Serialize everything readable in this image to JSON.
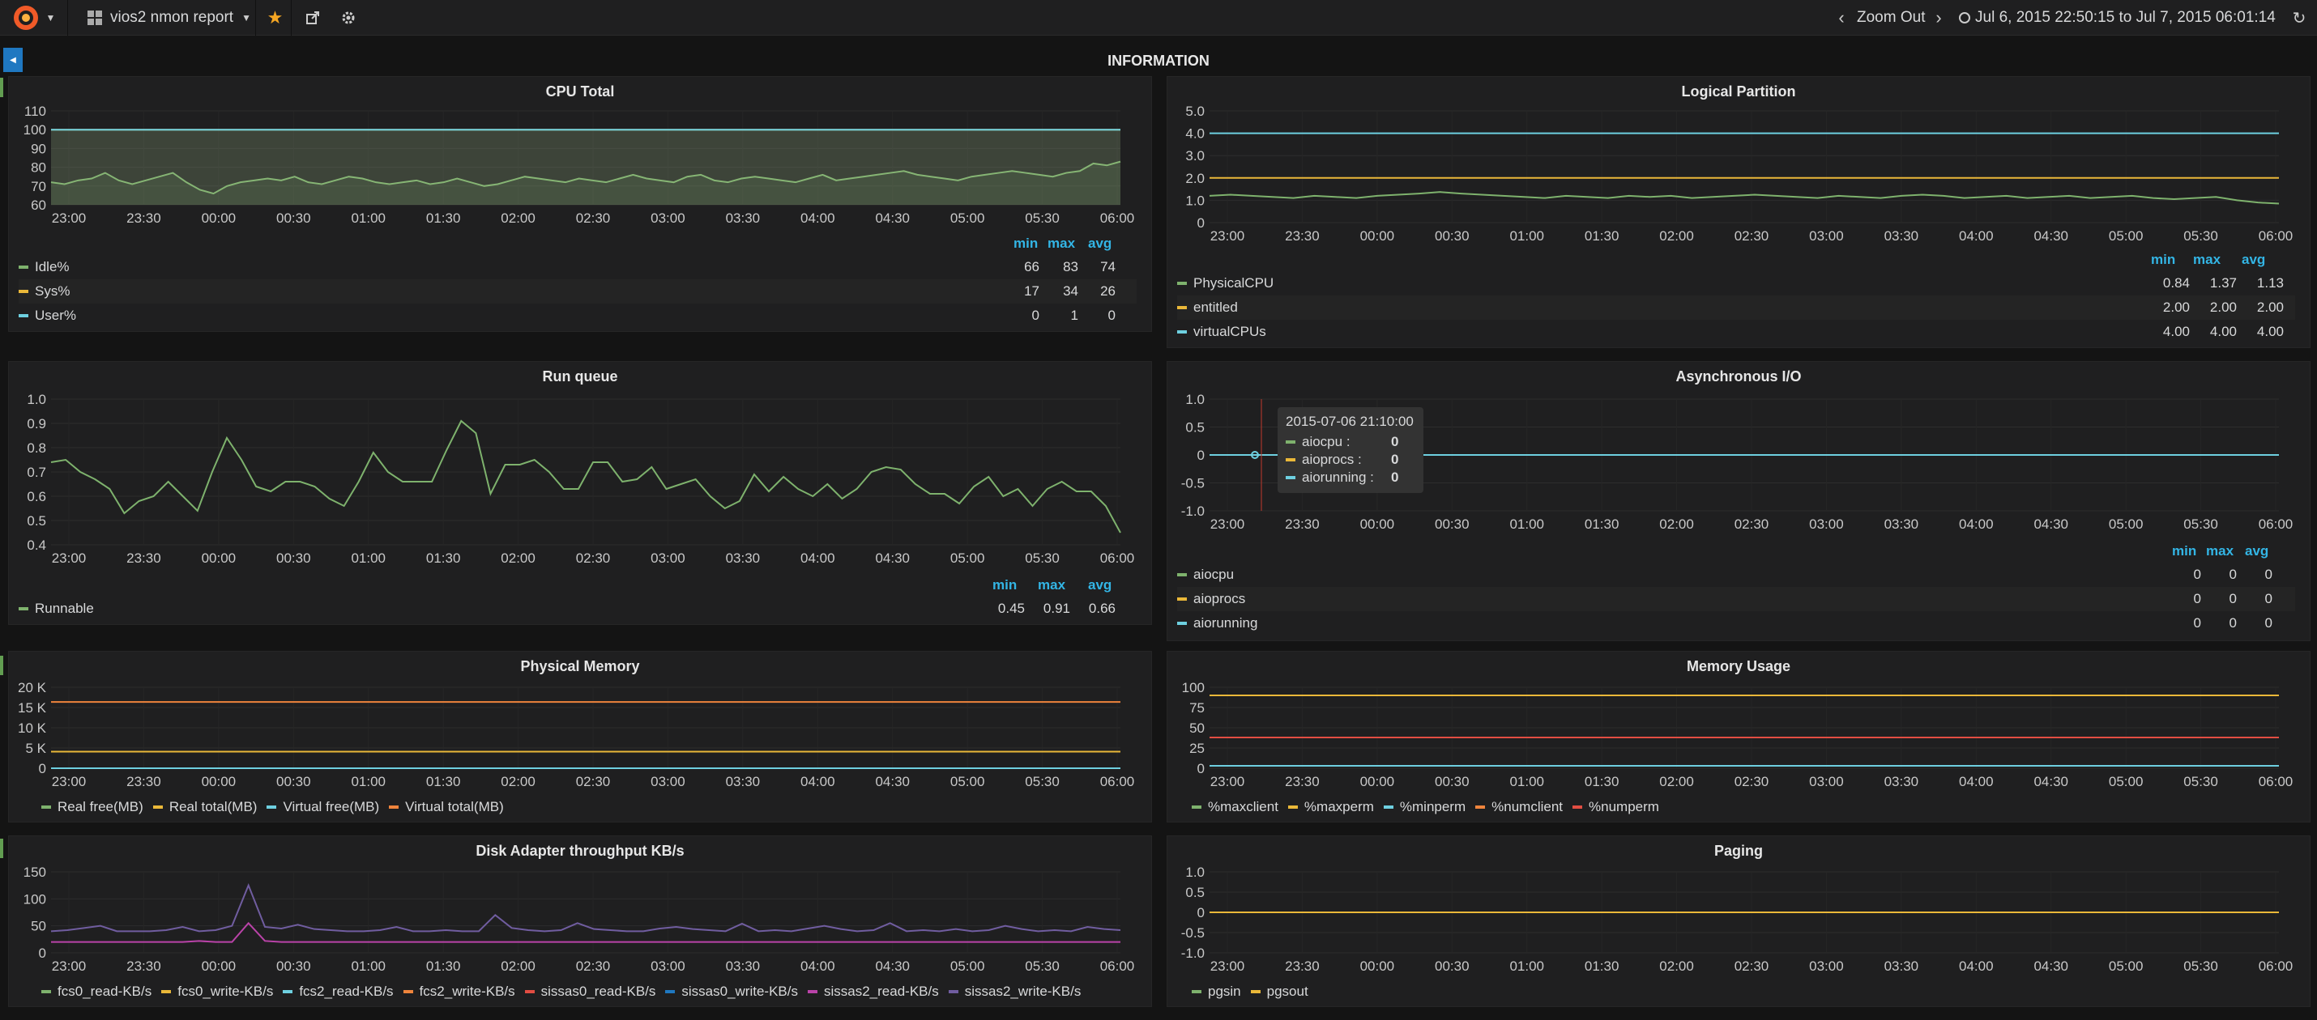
{
  "nav": {
    "dashboard_title": "vios2 nmon report",
    "zoom_out_label": "Zoom Out",
    "time_range": "Jul 6, 2015 22:50:15 to Jul 7, 2015 06:01:14"
  },
  "row_title": "INFORMATION",
  "time_ticks": [
    "23:00",
    "23:30",
    "00:00",
    "00:30",
    "01:00",
    "01:30",
    "02:00",
    "02:30",
    "03:00",
    "03:30",
    "04:00",
    "04:30",
    "05:00",
    "05:30",
    "06:00"
  ],
  "legend_headers": {
    "min": "min",
    "max": "max",
    "avg": "avg"
  },
  "panels": {
    "cpu": {
      "title": "CPU Total",
      "y_ticks": [
        "110",
        "100",
        "90",
        "80",
        "70",
        "60"
      ],
      "legend": [
        {
          "name": "Idle%",
          "min": "66",
          "max": "83",
          "avg": "74",
          "color": "#7eb26d"
        },
        {
          "name": "Sys%",
          "min": "17",
          "max": "34",
          "avg": "26",
          "color": "#eab839"
        },
        {
          "name": "User%",
          "min": "0",
          "max": "1",
          "avg": "0",
          "color": "#6ed0e0"
        }
      ]
    },
    "lpar": {
      "title": "Logical Partition",
      "y_ticks": [
        "5.0",
        "4.0",
        "3.0",
        "2.0",
        "1.0",
        "0"
      ],
      "legend": [
        {
          "name": "PhysicalCPU",
          "min": "0.84",
          "max": "1.37",
          "avg": "1.13",
          "color": "#7eb26d"
        },
        {
          "name": "entitled",
          "min": "2.00",
          "max": "2.00",
          "avg": "2.00",
          "color": "#eab839"
        },
        {
          "name": "virtualCPUs",
          "min": "4.00",
          "max": "4.00",
          "avg": "4.00",
          "color": "#6ed0e0"
        }
      ]
    },
    "runq": {
      "title": "Run queue",
      "y_ticks": [
        "1.0",
        "0.9",
        "0.8",
        "0.7",
        "0.6",
        "0.5",
        "0.4"
      ],
      "legend": [
        {
          "name": "Runnable",
          "min": "0.45",
          "max": "0.91",
          "avg": "0.66",
          "color": "#7eb26d"
        }
      ]
    },
    "aio": {
      "title": "Asynchronous I/O",
      "y_ticks": [
        "1.0",
        "0.5",
        "0",
        "-0.5",
        "-1.0"
      ],
      "legend": [
        {
          "name": "aiocpu",
          "min": "0",
          "max": "0",
          "avg": "0",
          "color": "#7eb26d"
        },
        {
          "name": "aioprocs",
          "min": "0",
          "max": "0",
          "avg": "0",
          "color": "#eab839"
        },
        {
          "name": "aiorunning",
          "min": "0",
          "max": "0",
          "avg": "0",
          "color": "#6ed0e0"
        }
      ],
      "tooltip": {
        "time": "2015-07-06 21:10:00",
        "rows": [
          {
            "name": "aiocpu :",
            "value": "0",
            "color": "#7eb26d"
          },
          {
            "name": "aioprocs :",
            "value": "0",
            "color": "#eab839"
          },
          {
            "name": "aiorunning :",
            "value": "0",
            "color": "#6ed0e0"
          }
        ]
      }
    },
    "physmem": {
      "title": "Physical Memory",
      "y_ticks": [
        "20 K",
        "15 K",
        "10 K",
        "5 K",
        "0"
      ],
      "legend": [
        {
          "name": "Real free(MB)",
          "color": "#7eb26d"
        },
        {
          "name": "Real total(MB)",
          "color": "#eab839"
        },
        {
          "name": "Virtual free(MB)",
          "color": "#6ed0e0"
        },
        {
          "name": "Virtual total(MB)",
          "color": "#ef843c"
        }
      ]
    },
    "memuse": {
      "title": "Memory Usage",
      "y_ticks": [
        "100",
        "75",
        "50",
        "25",
        "0"
      ],
      "legend": [
        {
          "name": "%maxclient",
          "color": "#7eb26d"
        },
        {
          "name": "%maxperm",
          "color": "#eab839"
        },
        {
          "name": "%minperm",
          "color": "#6ed0e0"
        },
        {
          "name": "%numclient",
          "color": "#ef843c"
        },
        {
          "name": "%numperm",
          "color": "#e24d42"
        }
      ]
    },
    "disk": {
      "title": "Disk Adapter throughput KB/s",
      "y_ticks": [
        "150",
        "100",
        "50",
        "0"
      ],
      "legend": [
        {
          "name": "fcs0_read-KB/s",
          "color": "#7eb26d"
        },
        {
          "name": "fcs0_write-KB/s",
          "color": "#eab839"
        },
        {
          "name": "fcs2_read-KB/s",
          "color": "#6ed0e0"
        },
        {
          "name": "fcs2_write-KB/s",
          "color": "#ef843c"
        },
        {
          "name": "sissas0_read-KB/s",
          "color": "#e24d42"
        },
        {
          "name": "sissas0_write-KB/s",
          "color": "#1f78c1"
        },
        {
          "name": "sissas2_read-KB/s",
          "color": "#ba43a9"
        },
        {
          "name": "sissas2_write-KB/s",
          "color": "#705da0"
        }
      ]
    },
    "paging": {
      "title": "Paging",
      "y_ticks": [
        "1.0",
        "0.5",
        "0",
        "-0.5",
        "-1.0"
      ],
      "legend": [
        {
          "name": "pgsin",
          "color": "#7eb26d"
        },
        {
          "name": "pgsout",
          "color": "#eab839"
        }
      ]
    }
  },
  "chart_data": [
    {
      "id": "cpu",
      "type": "line",
      "title": "CPU Total",
      "ylim": [
        60,
        110
      ],
      "series": [
        {
          "name": "Idle%",
          "values": [
            72,
            71,
            73,
            74,
            77,
            73,
            71,
            73,
            75,
            77,
            72,
            68,
            66,
            70,
            72,
            73,
            74,
            73,
            75,
            72,
            71,
            73,
            75,
            74,
            72,
            71,
            72,
            73,
            71,
            72,
            74,
            72,
            70,
            71,
            73,
            75,
            74,
            73,
            72,
            74,
            73,
            72,
            74,
            76,
            74,
            73,
            72,
            75,
            76,
            73,
            72,
            74,
            75,
            74,
            73,
            72,
            74,
            76,
            73,
            74,
            75,
            76,
            77,
            78,
            76,
            75,
            74,
            73,
            75,
            76,
            77,
            78,
            77,
            76,
            75,
            77,
            78,
            82,
            81,
            83
          ]
        },
        {
          "name": "Sys%",
          "values": [
            100,
            100,
            100,
            100,
            100,
            100,
            100,
            100,
            100,
            100,
            100,
            100,
            100,
            100,
            100,
            100,
            100,
            100,
            100,
            100
          ]
        },
        {
          "name": "User%",
          "values": [
            100,
            100,
            100,
            100,
            100,
            100,
            100,
            100,
            100,
            100,
            100,
            100,
            100,
            100,
            100,
            100,
            100,
            100,
            100,
            100
          ]
        }
      ]
    },
    {
      "id": "lpar",
      "type": "line",
      "title": "Logical Partition",
      "ylim": [
        0,
        5
      ],
      "series": [
        {
          "name": "PhysicalCPU",
          "values": [
            1.2,
            1.25,
            1.2,
            1.15,
            1.1,
            1.2,
            1.15,
            1.1,
            1.2,
            1.25,
            1.3,
            1.37,
            1.3,
            1.25,
            1.2,
            1.15,
            1.1,
            1.2,
            1.15,
            1.1,
            1.2,
            1.15,
            1.2,
            1.1,
            1.15,
            1.2,
            1.25,
            1.2,
            1.15,
            1.1,
            1.2,
            1.15,
            1.1,
            1.2,
            1.25,
            1.2,
            1.1,
            1.15,
            1.2,
            1.1,
            1.15,
            1.2,
            1.1,
            1.15,
            1.2,
            1.1,
            1.05,
            1.1,
            1.15,
            1.0,
            0.9,
            0.85
          ]
        },
        {
          "name": "entitled",
          "values": [
            2,
            2,
            2,
            2,
            2,
            2,
            2,
            2,
            2,
            2
          ]
        },
        {
          "name": "virtualCPUs",
          "values": [
            4,
            4,
            4,
            4,
            4,
            4,
            4,
            4,
            4,
            4
          ]
        }
      ]
    },
    {
      "id": "runq",
      "type": "line",
      "title": "Run queue",
      "ylim": [
        0.4,
        1.0
      ],
      "series": [
        {
          "name": "Runnable",
          "values": [
            0.74,
            0.75,
            0.7,
            0.67,
            0.63,
            0.53,
            0.58,
            0.6,
            0.66,
            0.6,
            0.54,
            0.7,
            0.84,
            0.75,
            0.64,
            0.62,
            0.66,
            0.66,
            0.64,
            0.59,
            0.56,
            0.66,
            0.78,
            0.7,
            0.66,
            0.66,
            0.66,
            0.79,
            0.91,
            0.86,
            0.61,
            0.73,
            0.73,
            0.75,
            0.7,
            0.63,
            0.63,
            0.74,
            0.74,
            0.66,
            0.67,
            0.72,
            0.63,
            0.65,
            0.67,
            0.6,
            0.55,
            0.58,
            0.69,
            0.62,
            0.68,
            0.63,
            0.6,
            0.65,
            0.59,
            0.63,
            0.7,
            0.72,
            0.71,
            0.65,
            0.61,
            0.61,
            0.57,
            0.64,
            0.68,
            0.6,
            0.63,
            0.56,
            0.63,
            0.66,
            0.62,
            0.62,
            0.56,
            0.45
          ]
        }
      ]
    },
    {
      "id": "aio",
      "type": "line",
      "title": "Asynchronous I/O",
      "ylim": [
        -1.0,
        1.0
      ],
      "series": [
        {
          "name": "aiocpu",
          "values": [
            0,
            0,
            0,
            0,
            0,
            0,
            0,
            0,
            0,
            0
          ]
        },
        {
          "name": "aioprocs",
          "values": [
            0,
            0,
            0,
            0,
            0,
            0,
            0,
            0,
            0,
            0
          ]
        },
        {
          "name": "aiorunning",
          "values": [
            0,
            0,
            0,
            0,
            0,
            0,
            0,
            0,
            0,
            0
          ]
        }
      ]
    },
    {
      "id": "physmem",
      "type": "line",
      "title": "Physical Memory",
      "ylim": [
        0,
        20000
      ],
      "series": [
        {
          "name": "Real free(MB)",
          "values": [
            0,
            0,
            0,
            0,
            0,
            0,
            0,
            0,
            0,
            0
          ]
        },
        {
          "name": "Real total(MB)",
          "values": [
            4096,
            4096,
            4096,
            4096,
            4096,
            4096,
            4096,
            4096,
            4096,
            4096
          ]
        },
        {
          "name": "Virtual free(MB)",
          "values": [
            0,
            0,
            0,
            0,
            0,
            0,
            0,
            0,
            0,
            0
          ]
        },
        {
          "name": "Virtual total(MB)",
          "values": [
            16384,
            16384,
            16384,
            16384,
            16384,
            16384,
            16384,
            16384,
            16384,
            16384
          ]
        }
      ]
    },
    {
      "id": "memuse",
      "type": "line",
      "title": "Memory Usage",
      "ylim": [
        0,
        100
      ],
      "series": [
        {
          "name": "%maxclient",
          "values": [
            90,
            90,
            90,
            90,
            90,
            90,
            90,
            90,
            90,
            90
          ]
        },
        {
          "name": "%maxperm",
          "values": [
            90,
            90,
            90,
            90,
            90,
            90,
            90,
            90,
            90,
            90
          ]
        },
        {
          "name": "%minperm",
          "values": [
            3,
            3,
            3,
            3,
            3,
            3,
            3,
            3,
            3,
            3
          ]
        },
        {
          "name": "%numclient",
          "values": [
            38,
            38,
            38,
            38,
            38,
            38,
            38,
            38,
            38,
            38
          ]
        },
        {
          "name": "%numperm",
          "values": [
            38,
            38,
            38,
            38,
            38,
            38,
            38,
            38,
            38,
            38
          ]
        }
      ]
    },
    {
      "id": "disk",
      "type": "line",
      "title": "Disk Adapter throughput KB/s",
      "ylim": [
        0,
        150
      ],
      "series": [
        {
          "name": "sissas2_read-KB/s",
          "values": [
            20,
            20,
            20,
            20,
            20,
            20,
            20,
            20,
            20,
            22,
            20,
            20,
            55,
            22,
            20,
            20,
            20,
            20,
            20,
            20,
            20,
            20,
            20,
            20,
            20,
            20,
            20,
            20,
            20,
            20,
            20,
            20,
            20,
            20,
            20,
            20,
            20,
            20,
            20,
            20,
            20,
            20,
            20,
            20,
            20,
            20,
            20,
            20,
            20,
            20,
            20,
            20,
            20,
            20,
            20,
            20,
            20,
            20,
            20,
            20,
            20,
            20,
            20,
            20,
            20,
            20
          ]
        },
        {
          "name": "sissas2_write-KB/s",
          "values": [
            40,
            42,
            46,
            50,
            40,
            40,
            40,
            42,
            48,
            40,
            42,
            50,
            125,
            48,
            45,
            52,
            44,
            42,
            40,
            40,
            42,
            48,
            40,
            40,
            42,
            40,
            40,
            70,
            46,
            42,
            40,
            42,
            55,
            44,
            42,
            40,
            40,
            45,
            48,
            44,
            42,
            40,
            54,
            40,
            42,
            40,
            45,
            50,
            44,
            40,
            42,
            55,
            40,
            42,
            40,
            44,
            40,
            42,
            50,
            44,
            40,
            42,
            40,
            48,
            44,
            42
          ]
        }
      ]
    },
    {
      "id": "paging",
      "type": "line",
      "title": "Paging",
      "ylim": [
        -1.0,
        1.0
      ],
      "series": [
        {
          "name": "pgsin",
          "values": [
            0,
            0,
            0,
            0,
            0,
            0,
            0,
            0,
            0,
            0
          ]
        },
        {
          "name": "pgsout",
          "values": [
            0,
            0,
            0,
            0,
            0,
            0,
            0,
            0,
            0,
            0
          ]
        }
      ]
    }
  ]
}
